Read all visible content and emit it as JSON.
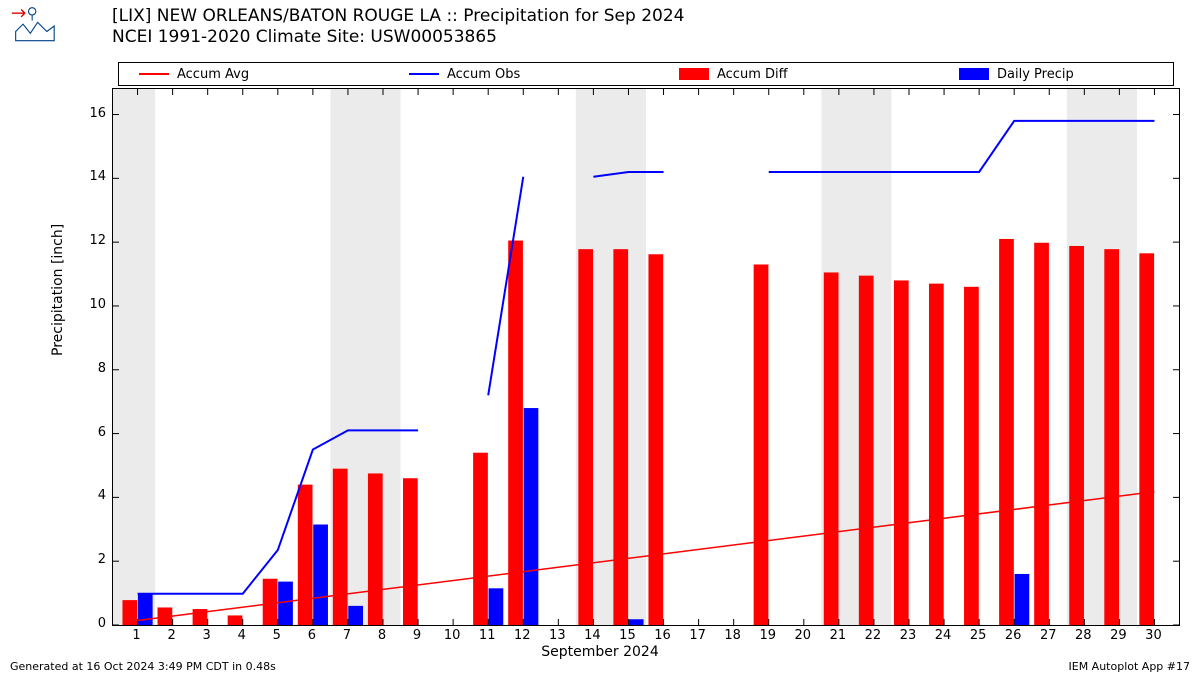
{
  "title_line1": "[LIX] NEW ORLEANS/BATON ROUGE  LA :: Precipitation for Sep 2024",
  "title_line2": "NCEI 1991-2020 Climate Site: USW00053865",
  "ylabel": "Precipitation [inch]",
  "xlabel": "September 2024",
  "footer_left": "Generated at 16 Oct 2024 3:49 PM CDT in 0.48s",
  "footer_right": "IEM Autoplot App #17",
  "legend": {
    "items": [
      {
        "label": "Accum Avg",
        "color": "#ff0000",
        "kind": "line"
      },
      {
        "label": "Accum Obs",
        "color": "#0000ff",
        "kind": "line"
      },
      {
        "label": "Accum Diff",
        "color": "#ff0000",
        "kind": "bar"
      },
      {
        "label": "Daily Precip",
        "color": "#0000ff",
        "kind": "bar"
      }
    ]
  },
  "chart": {
    "type": "combo-bar-line",
    "xlim": [
      0.3,
      30.7
    ],
    "ylim": [
      0,
      16.8
    ],
    "yticks": [
      0,
      2,
      4,
      6,
      8,
      10,
      12,
      14,
      16
    ],
    "xticks": [
      1,
      2,
      3,
      4,
      5,
      6,
      7,
      8,
      9,
      10,
      11,
      12,
      13,
      14,
      15,
      16,
      17,
      18,
      19,
      20,
      21,
      22,
      23,
      24,
      25,
      26,
      27,
      28,
      29,
      30
    ],
    "grid_color": "#ffffff",
    "weekend_band_color": "#ebebeb",
    "weekend_bands": [
      [
        0.3,
        1.5
      ],
      [
        6.5,
        8.5
      ],
      [
        13.5,
        15.5
      ],
      [
        20.5,
        22.5
      ],
      [
        27.5,
        29.5
      ]
    ],
    "diff_bars": {
      "color": "#ff0000",
      "width": 0.42,
      "center_offset": -0.22,
      "values": {
        "1": 0.78,
        "2": 0.55,
        "3": 0.5,
        "4": 0.3,
        "5": 1.45,
        "6": 4.4,
        "7": 4.9,
        "8": 4.75,
        "9": 4.6,
        "11": 5.4,
        "12": 12.05,
        "14": 11.78,
        "15": 11.78,
        "16": 11.62,
        "19": 11.3,
        "21": 11.05,
        "22": 10.95,
        "23": 10.8,
        "24": 10.7,
        "25": 10.6,
        "26": 12.1,
        "27": 11.98,
        "28": 11.88,
        "29": 11.78,
        "30": 11.65
      }
    },
    "daily_bars": {
      "color": "#0000ff",
      "width": 0.42,
      "center_offset": 0.22,
      "values": {
        "1": 0.98,
        "5": 1.36,
        "6": 3.15,
        "7": 0.6,
        "11": 1.15,
        "12": 6.8,
        "15": 0.18,
        "26": 1.6
      }
    },
    "accum_avg": {
      "color": "#ff0000",
      "width": 1.5,
      "points": [
        [
          1,
          0.14
        ],
        [
          30,
          4.18
        ]
      ]
    },
    "accum_obs": {
      "color": "#0000ff",
      "width": 2.0,
      "segments": [
        [
          [
            1,
            0.98
          ],
          [
            2,
            0.98
          ],
          [
            3,
            0.98
          ],
          [
            4,
            0.98
          ],
          [
            5,
            2.35
          ],
          [
            6,
            5.5
          ],
          [
            7,
            6.1
          ],
          [
            8,
            6.1
          ],
          [
            9,
            6.1
          ]
        ],
        [
          [
            11,
            7.2
          ],
          [
            12,
            14.05
          ]
        ],
        [
          [
            14,
            14.05
          ],
          [
            15,
            14.2
          ],
          [
            16,
            14.2
          ]
        ],
        [
          [
            19,
            14.2
          ],
          [
            21,
            14.2
          ],
          [
            22,
            14.2
          ],
          [
            23,
            14.2
          ],
          [
            24,
            14.2
          ],
          [
            25,
            14.2
          ],
          [
            26,
            15.8
          ],
          [
            27,
            15.8
          ],
          [
            28,
            15.8
          ],
          [
            29,
            15.8
          ],
          [
            30,
            15.8
          ]
        ]
      ]
    }
  }
}
